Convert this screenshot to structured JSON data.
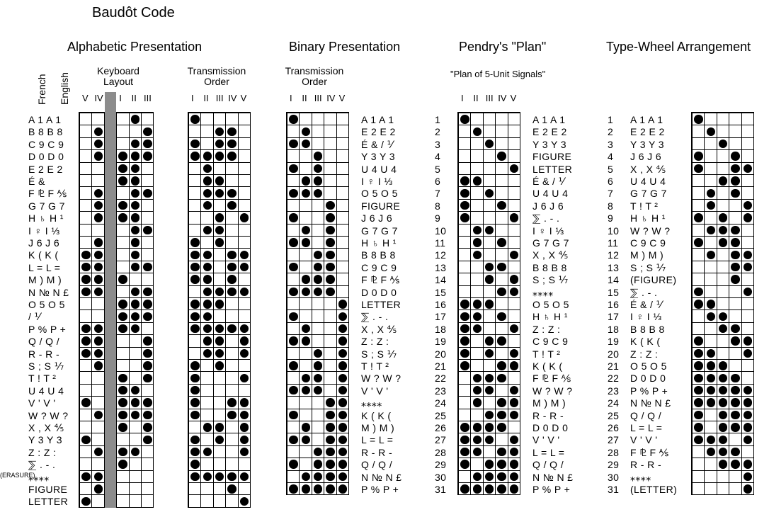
{
  "title": "Baudôt Code",
  "sections": {
    "alphabetic": {
      "title": "Alphabetic Presentation",
      "header_french": "French",
      "header_english": "English",
      "keyboard_layout": [
        "Keyboard",
        "Layout"
      ],
      "keyboard_numerals": [
        "V",
        "IV",
        "I",
        "II",
        "III"
      ],
      "transmission_order": [
        "Transmission",
        "Order"
      ],
      "transmission_numerals": [
        "I",
        "II",
        "III",
        "IV",
        "V"
      ],
      "erasure_label": "(ERASURE)",
      "rows": [
        "A 1 A 1",
        "B 8 B 8",
        "C 9 C 9",
        "D 0 D 0",
        "E 2 E 2",
        "É &",
        "F ⅊ F ⅍",
        "G 7 G 7",
        "H ♄ H ¹",
        "I ♀ I ⅓",
        "J 6 J 6",
        "K ( K (",
        "L = L =",
        "M ) M )",
        "N № N £",
        "O 5 O 5",
        "/ ⅟",
        "P % P +",
        "Q / Q /",
        "R - R -",
        "S ; S ⅐",
        "T ! T ²",
        "U 4 U 4",
        "V ' V '",
        "W ? W ?",
        "X , X ⅘",
        "Y 3 Y 3",
        "Z : Z :",
        "⅀ . - .",
        "⁎⁎⁎⁎",
        "FIGURE",
        "LETTER"
      ],
      "keyboard_bits": [
        "00010",
        "01001",
        "01011",
        "01111",
        "00110",
        "00110",
        "01011",
        "01110",
        "01110",
        "00011",
        "01010",
        "11010",
        "11011",
        "11100",
        "11011",
        "00111",
        "00111",
        "11110",
        "11001",
        "11001",
        "01001",
        "00101",
        "00110",
        "10111",
        "01111",
        "00101",
        "10001",
        "01110",
        "00100",
        "11000",
        "01000",
        "10000"
      ],
      "transmission_bits": [
        "10000",
        "00110",
        "10110",
        "11110",
        "01000",
        "01100",
        "01110",
        "01010",
        "00101",
        "01100",
        "10100",
        "11011",
        "11011",
        "11010",
        "01111",
        "11100",
        "11000",
        "11111",
        "01101",
        "01101",
        "10100",
        "10001",
        "10000",
        "10011",
        "10011",
        "01101",
        "10101",
        "11001",
        "10000",
        "11111",
        "00010",
        "00001"
      ]
    },
    "binary": {
      "title": "Binary Presentation",
      "transmission_order": [
        "Transmission",
        "Order"
      ],
      "numerals": [
        "I",
        "II",
        "III",
        "IV",
        "V"
      ],
      "labels": [
        "A 1 A 1",
        "E 2 E 2",
        "É & / ⅟",
        "Y 3 Y 3",
        "U 4 U 4",
        "I ♀ I ⅓",
        "O 5 O 5",
        "FIGURE",
        "J 6 J 6",
        "G 7 G 7",
        "H ♄ H ¹",
        "B 8 B 8",
        "C 9 C 9",
        "F ⅊ F ⅍",
        "D 0 D 0",
        "LETTER",
        "⅀ . - .",
        "X , X ⅘",
        "Z : Z :",
        "S ; S ⅐",
        "T ! T ²",
        "W ? W ?",
        "V ' V '",
        "⁎⁎⁎⁎",
        "K ( K (",
        "M ) M )",
        "L = L =",
        "R - R -",
        "Q / Q /",
        "N № N £",
        "P % P +"
      ],
      "bits": [
        "10000",
        "01000",
        "11000",
        "00100",
        "10100",
        "01100",
        "11100",
        "00010",
        "10010",
        "01010",
        "11010",
        "00110",
        "10110",
        "01110",
        "11110",
        "00001",
        "10001",
        "01001",
        "11001",
        "00101",
        "10101",
        "01101",
        "11101",
        "00011",
        "10011",
        "01011",
        "11011",
        "00111",
        "10111",
        "01111",
        "11111"
      ]
    },
    "pendry": {
      "title": "Pendry's \"Plan\"",
      "subtitle": "\"Plan of 5-Unit Signals\"",
      "numerals": [
        "I",
        "II",
        "III",
        "IV",
        "V"
      ],
      "numbers": [
        "1",
        "2",
        "3",
        "4",
        "5",
        "6",
        "7",
        "8",
        "9",
        "10",
        "11",
        "12",
        "13",
        "14",
        "15",
        "16",
        "17",
        "18",
        "19",
        "20",
        "21",
        "22",
        "23",
        "24",
        "25",
        "26",
        "27",
        "28",
        "29",
        "30",
        "31"
      ],
      "labels": [
        "A 1 A 1",
        "E 2 E 2",
        "Y 3 Y 3",
        "FIGURE",
        "LETTER",
        "É & / ⅟",
        "U 4 U 4",
        "J 6 J 6",
        "⅀ . - .",
        "I ♀ I ⅓",
        "G 7 G 7",
        "X , X ⅘",
        "B 8 B 8",
        "S ; S ⅐",
        "⁎⁎⁎⁎",
        "O 5 O 5",
        "H ♄ H ¹",
        "Z : Z :",
        "C 9 C 9",
        "T ! T ²",
        "K ( K (",
        "F ⅊ F ⅍",
        "W ? W ?",
        "M ) M )",
        "R - R -",
        "D 0 D 0",
        "V ' V '",
        "L = L =",
        "Q / Q /",
        "N № N £",
        "P % P +"
      ],
      "bits": [
        "10000",
        "01000",
        "00100",
        "00010",
        "00001",
        "11000",
        "10100",
        "10010",
        "10001",
        "01100",
        "01010",
        "01001",
        "00110",
        "00101",
        "00011",
        "11100",
        "11010",
        "11001",
        "10110",
        "10101",
        "10011",
        "01110",
        "01101",
        "01011",
        "00111",
        "11110",
        "11101",
        "11011",
        "10111",
        "01111",
        "11111"
      ]
    },
    "typewheel": {
      "title": "Type-Wheel Arrangement",
      "numbers": [
        "1",
        "2",
        "3",
        "4",
        "5",
        "6",
        "7",
        "8",
        "9",
        "10",
        "11",
        "12",
        "13",
        "14",
        "15",
        "16",
        "17",
        "18",
        "19",
        "20",
        "21",
        "22",
        "23",
        "24",
        "25",
        "26",
        "27",
        "28",
        "29",
        "30",
        "31"
      ],
      "labels": [
        "A 1 A 1",
        "E 2 E 2",
        "Y 3 Y 3",
        "J 6 J 6",
        "X , X ⅘",
        "U 4 U 4",
        "G 7 G 7",
        "T ! T ²",
        "H ♄ H ¹",
        "W ? W ?",
        "C 9 C 9",
        "M ) M )",
        "S ; S ⅐",
        "(FIGURE)",
        "⅀ . - .",
        "É & / ⅟",
        "I ♀ I ⅓",
        "B 8 B 8",
        "K ( K (",
        "Z : Z :",
        "O 5 O 5",
        "D 0 D 0",
        "P % P +",
        "N № N £",
        "Q / Q /",
        "L = L =",
        "V ' V '",
        "F ⅊ F ⅍",
        "R - R -",
        "⁎⁎⁎⁎",
        "(LETTER)"
      ],
      "bits": [
        "10000",
        "01000",
        "00100",
        "10010",
        "10011",
        "00110",
        "01010",
        "01001",
        "10101",
        "01110",
        "10110",
        "01011",
        "00011",
        "00010",
        "10001",
        "11000",
        "01100",
        "00110",
        "10011",
        "11001",
        "11100",
        "11110",
        "11111",
        "11111",
        "10111",
        "10111",
        "11101",
        "01110",
        "00111",
        "00001",
        "00001"
      ]
    }
  }
}
